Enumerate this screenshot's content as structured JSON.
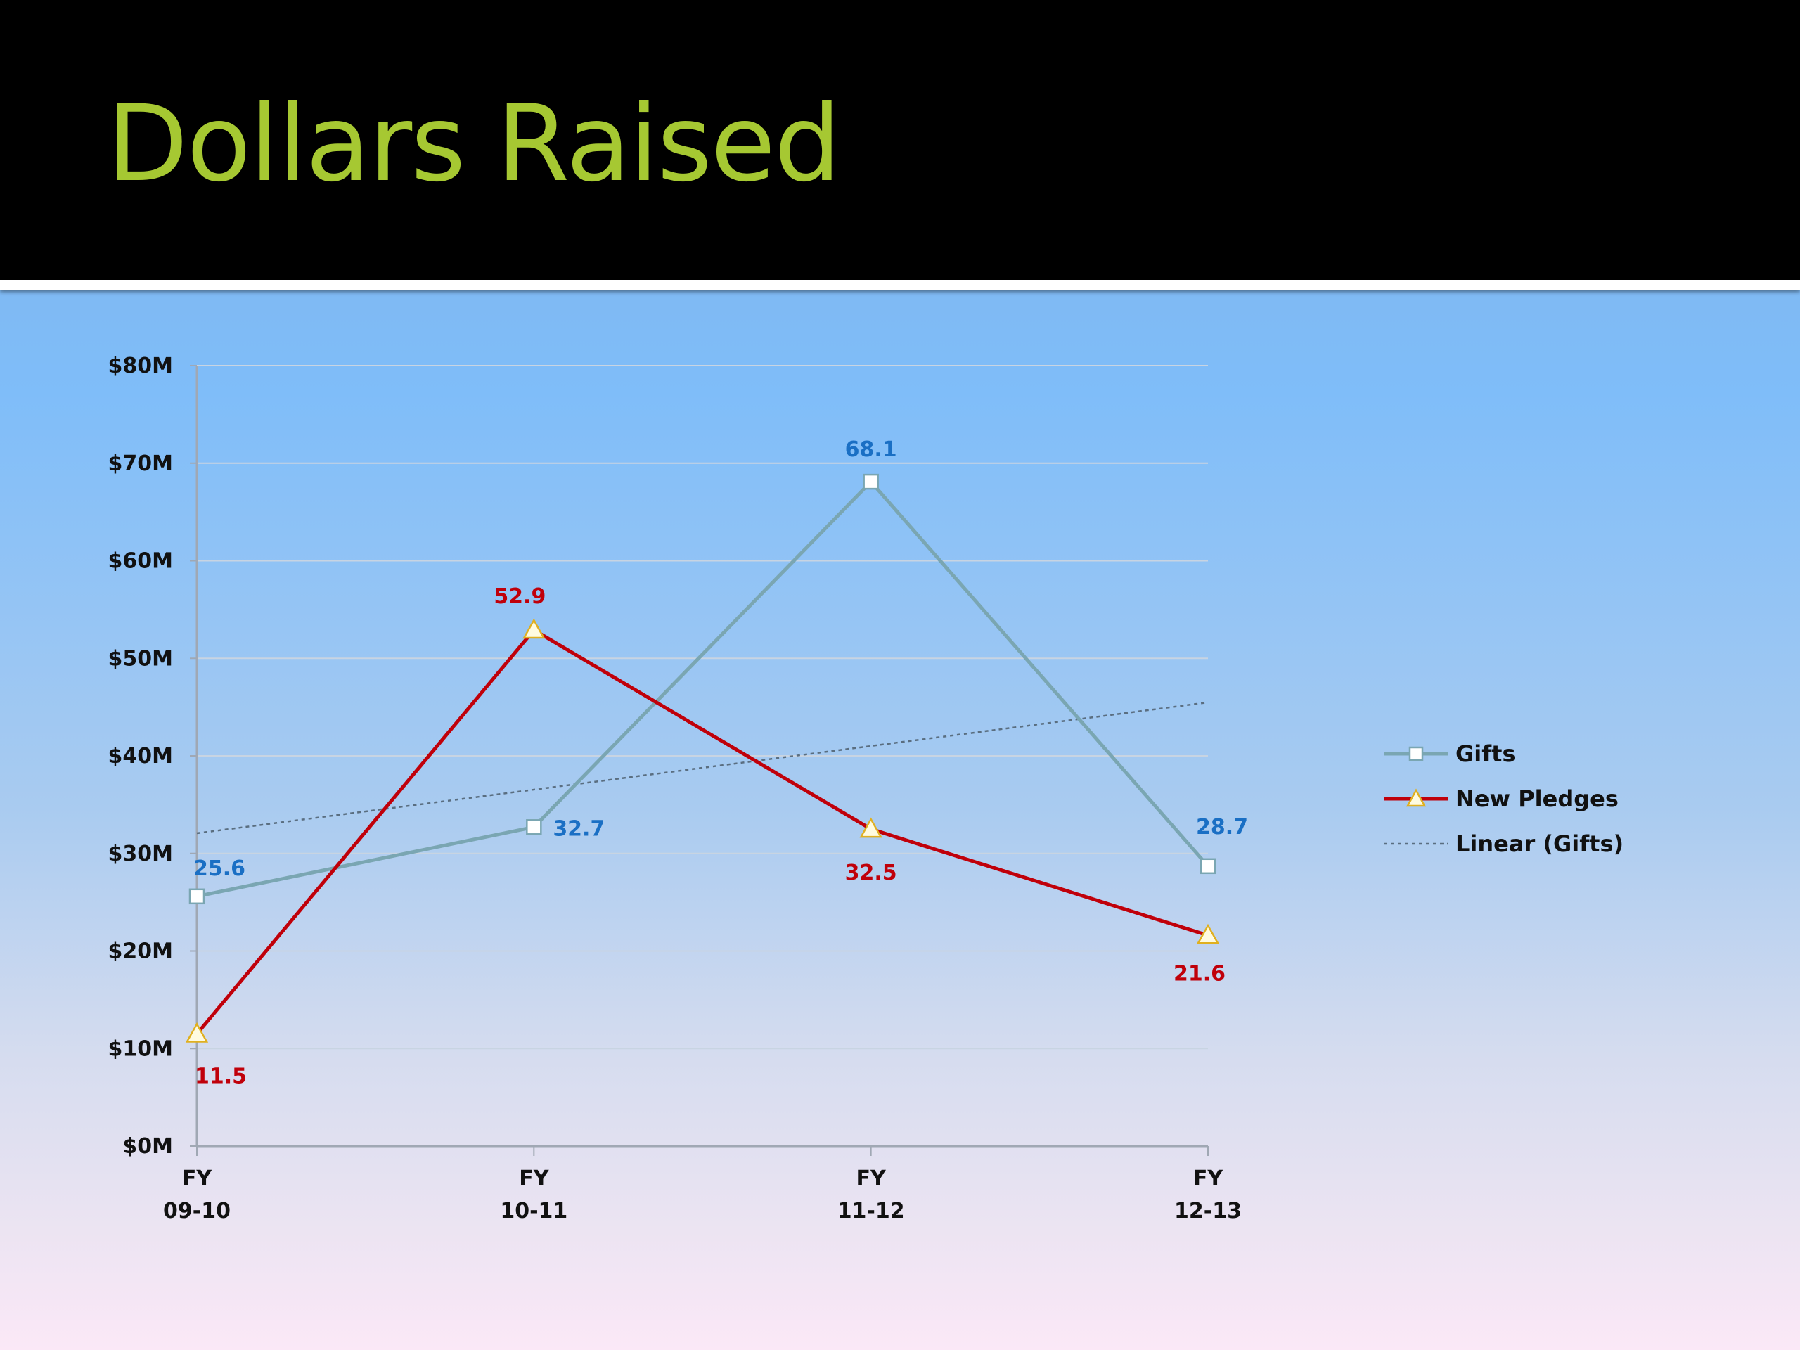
{
  "slide": {
    "title": "Dollars Raised"
  },
  "colors": {
    "gifts": "#7aa6b2",
    "gifts_label": "#1a6fc4",
    "pledges": "#c0000a",
    "pledges_label": "#c0000a",
    "trend": "#5a6e80",
    "marker_fill": "#ffffff",
    "triangle_fill": "#fffbe0",
    "triangle_stroke": "#e0b020",
    "grid": "#c8d4e2",
    "axis": "#a0a8b4"
  },
  "chart_data": {
    "type": "line",
    "title": "",
    "categories": [
      {
        "line1": "FY",
        "line2": "09-10"
      },
      {
        "line1": "FY",
        "line2": "10-11"
      },
      {
        "line1": "FY",
        "line2": "11-12"
      },
      {
        "line1": "FY",
        "line2": "12-13"
      }
    ],
    "y_ticks": [
      "$0M",
      "$10M",
      "$20M",
      "$30M",
      "$40M",
      "$50M",
      "$60M",
      "$70M",
      "$80M"
    ],
    "ylim": [
      0,
      80
    ],
    "grid": true,
    "legend_position": "right",
    "series": [
      {
        "name": "Gifts",
        "values": [
          25.6,
          32.7,
          68.1,
          28.7
        ],
        "labels": [
          "25.6",
          "32.7",
          "68.1",
          "28.7"
        ],
        "marker": "square"
      },
      {
        "name": "New Pledges",
        "values": [
          11.5,
          52.9,
          32.5,
          21.6
        ],
        "labels": [
          "11.5",
          "52.9",
          "32.5",
          "21.6"
        ],
        "marker": "triangle"
      }
    ],
    "trendline": {
      "name": "Linear (Gifts)",
      "of_series": "Gifts",
      "style": "dotted"
    }
  }
}
